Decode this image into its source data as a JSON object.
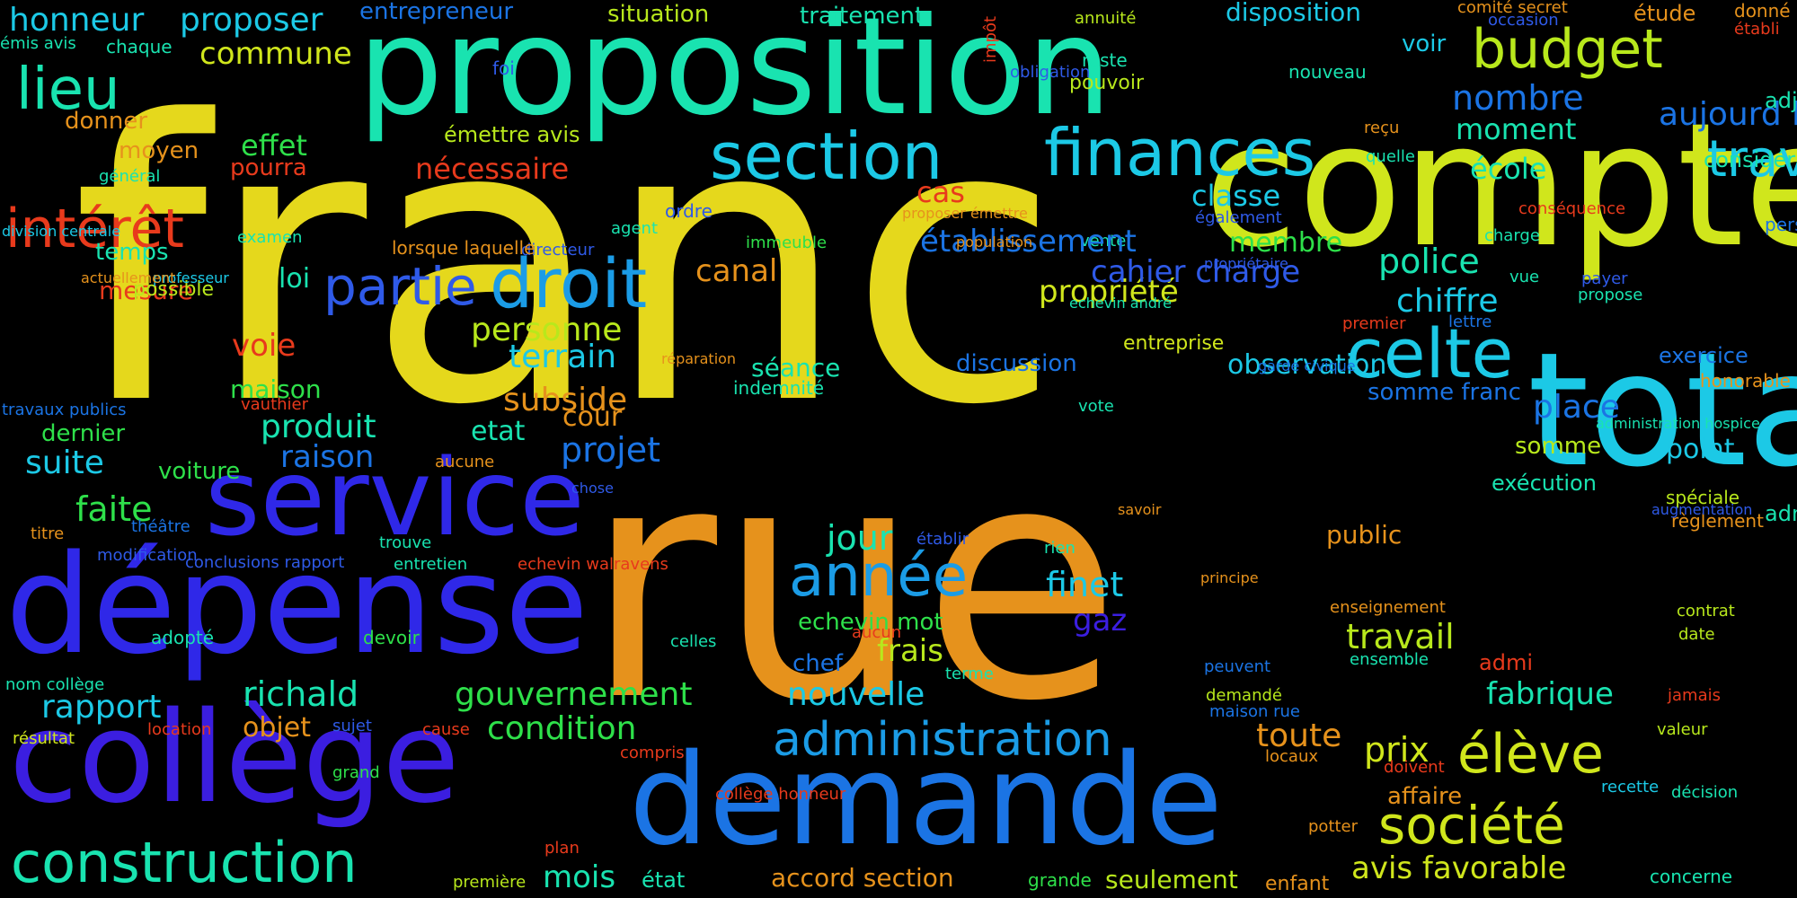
{
  "palette": {
    "background": "#000000",
    "yellow": "#e5d81c",
    "orange": "#e6921c",
    "teal": "#19e3b0",
    "cyan": "#1cc9e6",
    "blue": "#1b74e4",
    "indigo": "#2f28e8",
    "violet": "#3b1ee0",
    "green": "#2ee04a",
    "lime": "#b8e81c",
    "red": "#e83a1c"
  },
  "words": [
    {
      "text": "franc",
      "color": "#e5d81c"
    },
    {
      "text": "rue",
      "color": "#e6921c"
    },
    {
      "text": "proposition",
      "color": "#19e3b0"
    },
    {
      "text": "compte",
      "color": "#d0e61c"
    },
    {
      "text": "total",
      "color": "#1cc9e6"
    },
    {
      "text": "dépense",
      "color": "#2f28e8"
    },
    {
      "text": "collège",
      "color": "#3b1ee0"
    },
    {
      "text": "demande",
      "color": "#1b74e4"
    },
    {
      "text": "service",
      "color": "#2f28e8"
    },
    {
      "text": "construction",
      "color": "#19e3b0"
    },
    {
      "text": "finances",
      "color": "#1cc9e6"
    },
    {
      "text": "section",
      "color": "#1cc9e6"
    },
    {
      "text": "budget",
      "color": "#b8e81c"
    },
    {
      "text": "droit",
      "color": "#1b9ce6"
    },
    {
      "text": "partie",
      "color": "#2f5ae8"
    },
    {
      "text": "celte",
      "color": "#1cc9e6"
    },
    {
      "text": "année",
      "color": "#1b9ce6"
    },
    {
      "text": "administration",
      "color": "#1b9ce6"
    },
    {
      "text": "société",
      "color": "#d0e61c"
    },
    {
      "text": "élève",
      "color": "#d0e61c"
    },
    {
      "text": "travaux",
      "color": "#1cc9e6"
    },
    {
      "text": "intérêt",
      "color": "#e83a1c"
    },
    {
      "text": "lieu",
      "color": "#19e3b0"
    },
    {
      "text": "honneur",
      "color": "#1cc9e6"
    },
    {
      "text": "proposer",
      "color": "#1cc9e6"
    },
    {
      "text": "commune",
      "color": "#d0e61c"
    },
    {
      "text": "entrepreneur",
      "color": "#1b74e4"
    },
    {
      "text": "situation",
      "color": "#b8e81c"
    },
    {
      "text": "traitement",
      "color": "#19e3b0"
    },
    {
      "text": "disposition",
      "color": "#1cc9e6"
    },
    {
      "text": "annuité",
      "color": "#b8e81c"
    },
    {
      "text": "comité secret",
      "color": "#e6921c"
    },
    {
      "text": "occasion",
      "color": "#2f5ae8"
    },
    {
      "text": "étude",
      "color": "#e6921c"
    },
    {
      "text": "donné",
      "color": "#e6921c"
    },
    {
      "text": "établi",
      "color": "#e83a1c"
    },
    {
      "text": "émis avis",
      "color": "#19e3b0"
    },
    {
      "text": "chaque",
      "color": "#19e3b0"
    },
    {
      "text": "foi",
      "color": "#2f5ae8"
    },
    {
      "text": "reste",
      "color": "#19e3b0"
    },
    {
      "text": "pouvoir",
      "color": "#b8e81c"
    },
    {
      "text": "nouveau",
      "color": "#19e3b0"
    },
    {
      "text": "voir",
      "color": "#1cc9e6"
    },
    {
      "text": "nombre",
      "color": "#1b74e4"
    },
    {
      "text": "impôt",
      "color": "#e83a1c"
    },
    {
      "text": "obligation",
      "color": "#2f5ae8"
    },
    {
      "text": "donner",
      "color": "#e6921c"
    },
    {
      "text": "moyen",
      "color": "#e6921c"
    },
    {
      "text": "général",
      "color": "#19e3b0"
    },
    {
      "text": "effet",
      "color": "#2ee04a"
    },
    {
      "text": "émettre avis",
      "color": "#b8e81c"
    },
    {
      "text": "nécessaire",
      "color": "#e83a1c"
    },
    {
      "text": "pourra",
      "color": "#e83a1c"
    },
    {
      "text": "moment",
      "color": "#19e3b0"
    },
    {
      "text": "reçu",
      "color": "#e6921c"
    },
    {
      "text": "quelle",
      "color": "#19e3b0"
    },
    {
      "text": "école",
      "color": "#19e3b0"
    },
    {
      "text": "classe",
      "color": "#1cc9e6"
    },
    {
      "text": "cas",
      "color": "#e83a1c"
    },
    {
      "text": "également",
      "color": "#2f5ae8"
    },
    {
      "text": "conséquence",
      "color": "#e83a1c"
    },
    {
      "text": "ordre",
      "color": "#2f5ae8"
    },
    {
      "text": "agent",
      "color": "#19e3b0"
    },
    {
      "text": "examen",
      "color": "#19e3b0"
    },
    {
      "text": "directeur",
      "color": "#2f5ae8"
    },
    {
      "text": "immeuble",
      "color": "#2ee04a"
    },
    {
      "text": "vente",
      "color": "#19e3b0"
    },
    {
      "text": "charge",
      "color": "#19e3b0"
    },
    {
      "text": "temps",
      "color": "#19e3b0"
    },
    {
      "text": "canal",
      "color": "#e6921c"
    },
    {
      "text": "police",
      "color": "#19e3b0"
    },
    {
      "text": "chiffre",
      "color": "#1cc9e6"
    },
    {
      "text": "vue",
      "color": "#19e3b0"
    },
    {
      "text": "payer",
      "color": "#2f5ae8"
    },
    {
      "text": "propose",
      "color": "#19e3b0"
    },
    {
      "text": "aujourd hui",
      "color": "#1b74e4"
    },
    {
      "text": "considérable",
      "color": "#19e3b0"
    },
    {
      "text": "adjudication",
      "color": "#19e3b0"
    },
    {
      "text": "personnel",
      "color": "#1b74e4"
    },
    {
      "text": "loi",
      "color": "#19e3b0"
    },
    {
      "text": "personne",
      "color": "#b8e81c"
    },
    {
      "text": "terrain",
      "color": "#1cc9e6"
    },
    {
      "text": "premier",
      "color": "#e83a1c"
    },
    {
      "text": "lettre",
      "color": "#1b74e4"
    },
    {
      "text": "exercice",
      "color": "#1b74e4"
    },
    {
      "text": "mesure",
      "color": "#e83a1c"
    },
    {
      "text": "possible",
      "color": "#b8e81c"
    },
    {
      "text": "professeur",
      "color": "#1cc9e6"
    },
    {
      "text": "actuellement",
      "color": "#e6921c"
    },
    {
      "text": "division centrale",
      "color": "#1cc9e6"
    },
    {
      "text": "voie",
      "color": "#e83a1c"
    },
    {
      "text": "lorsque laquelle",
      "color": "#e6921c"
    },
    {
      "text": "établissement",
      "color": "#1b74e4"
    },
    {
      "text": "proposer émettre",
      "color": "#e6921c"
    },
    {
      "text": "population",
      "color": "#e6921c"
    },
    {
      "text": "propriété",
      "color": "#d0e61c"
    },
    {
      "text": "cahier charge",
      "color": "#2f5ae8"
    },
    {
      "text": "echevin andré",
      "color": "#19e3b0"
    },
    {
      "text": "entreprise",
      "color": "#d0e61c"
    },
    {
      "text": "membre",
      "color": "#2ee04a"
    },
    {
      "text": "propriétaire",
      "color": "#2f5ae8"
    },
    {
      "text": "honorable",
      "color": "#e6921c"
    },
    {
      "text": "maison",
      "color": "#2ee04a"
    },
    {
      "text": "vauthier",
      "color": "#e83a1c"
    },
    {
      "text": "subside",
      "color": "#e6921c"
    },
    {
      "text": "séance",
      "color": "#19e3b0"
    },
    {
      "text": "indemnité",
      "color": "#19e3b0"
    },
    {
      "text": "réparation",
      "color": "#e6921c"
    },
    {
      "text": "vote",
      "color": "#19e3b0"
    },
    {
      "text": "somme franc",
      "color": "#1b74e4"
    },
    {
      "text": "place",
      "color": "#1b74e4"
    },
    {
      "text": "produit",
      "color": "#19e3b0"
    },
    {
      "text": "etat",
      "color": "#19e3b0"
    },
    {
      "text": "cour",
      "color": "#e6921c"
    },
    {
      "text": "discussion",
      "color": "#1b74e4"
    },
    {
      "text": "observation",
      "color": "#1cc9e6"
    },
    {
      "text": "garde civique",
      "color": "#1b74e4"
    },
    {
      "text": "dernier",
      "color": "#2ee04a"
    },
    {
      "text": "raison",
      "color": "#1b74e4"
    },
    {
      "text": "projet",
      "color": "#1b74e4"
    },
    {
      "text": "aucune",
      "color": "#e6921c"
    },
    {
      "text": "somme",
      "color": "#b8e81c"
    },
    {
      "text": "point",
      "color": "#1cc9e6"
    },
    {
      "text": "suite",
      "color": "#1cc9e6"
    },
    {
      "text": "voiture",
      "color": "#2ee04a"
    },
    {
      "text": "administration hospice",
      "color": "#19e3b0"
    },
    {
      "text": "spéciale",
      "color": "#b8e81c"
    },
    {
      "text": "règlement",
      "color": "#e6921c"
    },
    {
      "text": "travaux publics",
      "color": "#1b74e4"
    },
    {
      "text": "faite",
      "color": "#2ee04a"
    },
    {
      "text": "chose",
      "color": "#2f5ae8"
    },
    {
      "text": "titre",
      "color": "#e6921c"
    },
    {
      "text": "théâtre",
      "color": "#1b74e4"
    },
    {
      "text": "trouve",
      "color": "#19e3b0"
    },
    {
      "text": "jour",
      "color": "#19e3b0"
    },
    {
      "text": "établir",
      "color": "#2f5ae8"
    },
    {
      "text": "public",
      "color": "#e6921c"
    },
    {
      "text": "exécution",
      "color": "#19e3b0"
    },
    {
      "text": "administration communale",
      "color": "#19e3b0"
    },
    {
      "text": "rien",
      "color": "#19e3b0"
    },
    {
      "text": "savoir",
      "color": "#e6921c"
    },
    {
      "text": "conclusions rapport",
      "color": "#2f5ae8"
    },
    {
      "text": "entretien",
      "color": "#19e3b0"
    },
    {
      "text": "echevin walravens",
      "color": "#e83a1c"
    },
    {
      "text": "finet",
      "color": "#1cc9e6"
    },
    {
      "text": "enseignement",
      "color": "#e6921c"
    },
    {
      "text": "modification",
      "color": "#2f5ae8"
    },
    {
      "text": "gaz",
      "color": "#3b1ee0"
    },
    {
      "text": "augmentation",
      "color": "#2f5ae8"
    },
    {
      "text": "contrat",
      "color": "#b8e81c"
    },
    {
      "text": "adopté",
      "color": "#19e3b0"
    },
    {
      "text": "devoir",
      "color": "#2ee04a"
    },
    {
      "text": "celles",
      "color": "#19e3b0"
    },
    {
      "text": "echevin mot",
      "color": "#2ee04a"
    },
    {
      "text": "aucun",
      "color": "#e83a1c"
    },
    {
      "text": "principe",
      "color": "#e6921c"
    },
    {
      "text": "travail",
      "color": "#b8e81c"
    },
    {
      "text": "date",
      "color": "#b8e81c"
    },
    {
      "text": "frais",
      "color": "#b8e81c"
    },
    {
      "text": "ensemble",
      "color": "#19e3b0"
    },
    {
      "text": "chef",
      "color": "#1b74e4"
    },
    {
      "text": "peuvent",
      "color": "#1b74e4"
    },
    {
      "text": "admi",
      "color": "#e83a1c"
    },
    {
      "text": "terme",
      "color": "#19e3b0"
    },
    {
      "text": "nom collège",
      "color": "#19e3b0"
    },
    {
      "text": "richald",
      "color": "#19e3b0"
    },
    {
      "text": "gouvernement",
      "color": "#2ee04a"
    },
    {
      "text": "nouvelle",
      "color": "#1cc9e6"
    },
    {
      "text": "fabrique",
      "color": "#19e3b0"
    },
    {
      "text": "rapport",
      "color": "#1cc9e6"
    },
    {
      "text": "demandé",
      "color": "#b8e81c"
    },
    {
      "text": "maison rue",
      "color": "#1b74e4"
    },
    {
      "text": "jamais",
      "color": "#e83a1c"
    },
    {
      "text": "location",
      "color": "#e83a1c"
    },
    {
      "text": "sujet",
      "color": "#2f5ae8"
    },
    {
      "text": "cause",
      "color": "#e83a1c"
    },
    {
      "text": "condition",
      "color": "#2ee04a"
    },
    {
      "text": "valeur",
      "color": "#b8e81c"
    },
    {
      "text": "toute",
      "color": "#e6921c"
    },
    {
      "text": "prix",
      "color": "#d0e61c"
    },
    {
      "text": "résultat",
      "color": "#d0e61c"
    },
    {
      "text": "objet",
      "color": "#e6921c"
    },
    {
      "text": "compris",
      "color": "#e83a1c"
    },
    {
      "text": "locaux",
      "color": "#e6921c"
    },
    {
      "text": "doivent",
      "color": "#e83a1c"
    },
    {
      "text": "grand",
      "color": "#2ee04a"
    },
    {
      "text": "affaire",
      "color": "#e6921c"
    },
    {
      "text": "décision",
      "color": "#19e3b0"
    },
    {
      "text": "recette",
      "color": "#1cc9e6"
    },
    {
      "text": "collège honneur",
      "color": "#e83a1c"
    },
    {
      "text": "potter",
      "color": "#e6921c"
    },
    {
      "text": "plan",
      "color": "#e83a1c"
    },
    {
      "text": "avis favorable",
      "color": "#d0e61c"
    },
    {
      "text": "mois",
      "color": "#19e3b0"
    },
    {
      "text": "état",
      "color": "#19e3b0"
    },
    {
      "text": "accord section",
      "color": "#e6921c"
    },
    {
      "text": "grande",
      "color": "#2ee04a"
    },
    {
      "text": "seulement",
      "color": "#b8e81c"
    },
    {
      "text": "enfant",
      "color": "#e6921c"
    },
    {
      "text": "concerne",
      "color": "#19e3b0"
    },
    {
      "text": "première",
      "color": "#b8e81c"
    }
  ]
}
